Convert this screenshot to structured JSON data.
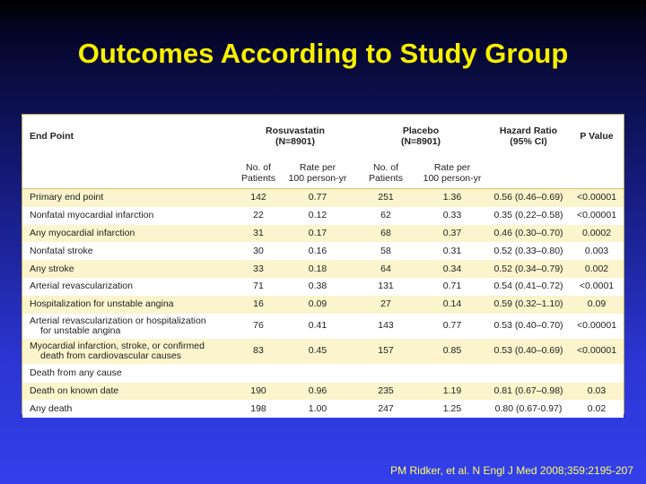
{
  "title": "Outcomes According to Study Group",
  "citation": "PM Ridker, et al. N Engl J Med 2008;359:2195-207",
  "table": {
    "header": {
      "end_point": "End Point",
      "rosuvastatin": "Rosuvastatin",
      "rosuvastatin_n": "(N=8901)",
      "placebo": "Placebo",
      "placebo_n": "(N=8901)",
      "hazard_ratio": "Hazard Ratio",
      "hazard_ci": "(95% CI)",
      "p_value": "P Value",
      "no_patients_1": "No. of",
      "no_patients_2": "Patients",
      "rate_1": "Rate per",
      "rate_2": "100 person-yr"
    },
    "rows": [
      {
        "label": "Primary end point",
        "label_cont": "",
        "r_n": "142",
        "r_rate": "0.77",
        "p_n": "251",
        "p_rate": "1.36",
        "hr": "0.56 (0.46–0.69)",
        "p": "<0.00001"
      },
      {
        "label": "Nonfatal myocardial infarction",
        "label_cont": "",
        "r_n": "22",
        "r_rate": "0.12",
        "p_n": "62",
        "p_rate": "0.33",
        "hr": "0.35 (0.22–0.58)",
        "p": "<0.00001"
      },
      {
        "label": "Any myocardial infarction",
        "label_cont": "",
        "r_n": "31",
        "r_rate": "0.17",
        "p_n": "68",
        "p_rate": "0.37",
        "hr": "0.46 (0.30–0.70)",
        "p": "0.0002"
      },
      {
        "label": "Nonfatal stroke",
        "label_cont": "",
        "r_n": "30",
        "r_rate": "0.16",
        "p_n": "58",
        "p_rate": "0.31",
        "hr": "0.52 (0.33–0.80)",
        "p": "0.003"
      },
      {
        "label": "Any stroke",
        "label_cont": "",
        "r_n": "33",
        "r_rate": "0.18",
        "p_n": "64",
        "p_rate": "0.34",
        "hr": "0.52 (0.34–0.79)",
        "p": "0.002"
      },
      {
        "label": "Arterial revascularization",
        "label_cont": "",
        "r_n": "71",
        "r_rate": "0.38",
        "p_n": "131",
        "p_rate": "0.71",
        "hr": "0.54 (0.41–0.72)",
        "p": "<0.0001"
      },
      {
        "label": "Hospitalization for unstable angina",
        "label_cont": "",
        "r_n": "16",
        "r_rate": "0.09",
        "p_n": "27",
        "p_rate": "0.14",
        "hr": "0.59 (0.32–1.10)",
        "p": "0.09"
      },
      {
        "label": "Arterial revascularization or hospitalization",
        "label_cont": "for unstable angina",
        "r_n": "76",
        "r_rate": "0.41",
        "p_n": "143",
        "p_rate": "0.77",
        "hr": "0.53 (0.40–0.70)",
        "p": "<0.00001"
      },
      {
        "label": "Myocardial infarction, stroke, or confirmed",
        "label_cont": "death from cardiovascular causes",
        "r_n": "83",
        "r_rate": "0.45",
        "p_n": "157",
        "p_rate": "0.85",
        "hr": "0.53 (0.40–0.69)",
        "p": "<0.00001"
      },
      {
        "label": "Death from any cause",
        "label_cont": "",
        "r_n": "",
        "r_rate": "",
        "p_n": "",
        "p_rate": "",
        "hr": "",
        "p": ""
      },
      {
        "label": "Death on known date",
        "label_cont": "",
        "r_n": "190",
        "r_rate": "0.96",
        "p_n": "235",
        "p_rate": "1.19",
        "hr": "0.81 (0.67–0.98)",
        "p": "0.03"
      },
      {
        "label": "Any death",
        "label_cont": "",
        "r_n": "198",
        "r_rate": "1.00",
        "p_n": "247",
        "p_rate": "1.25",
        "hr": "0.80 (0.67-0.97)",
        "p": "0.02"
      }
    ]
  }
}
